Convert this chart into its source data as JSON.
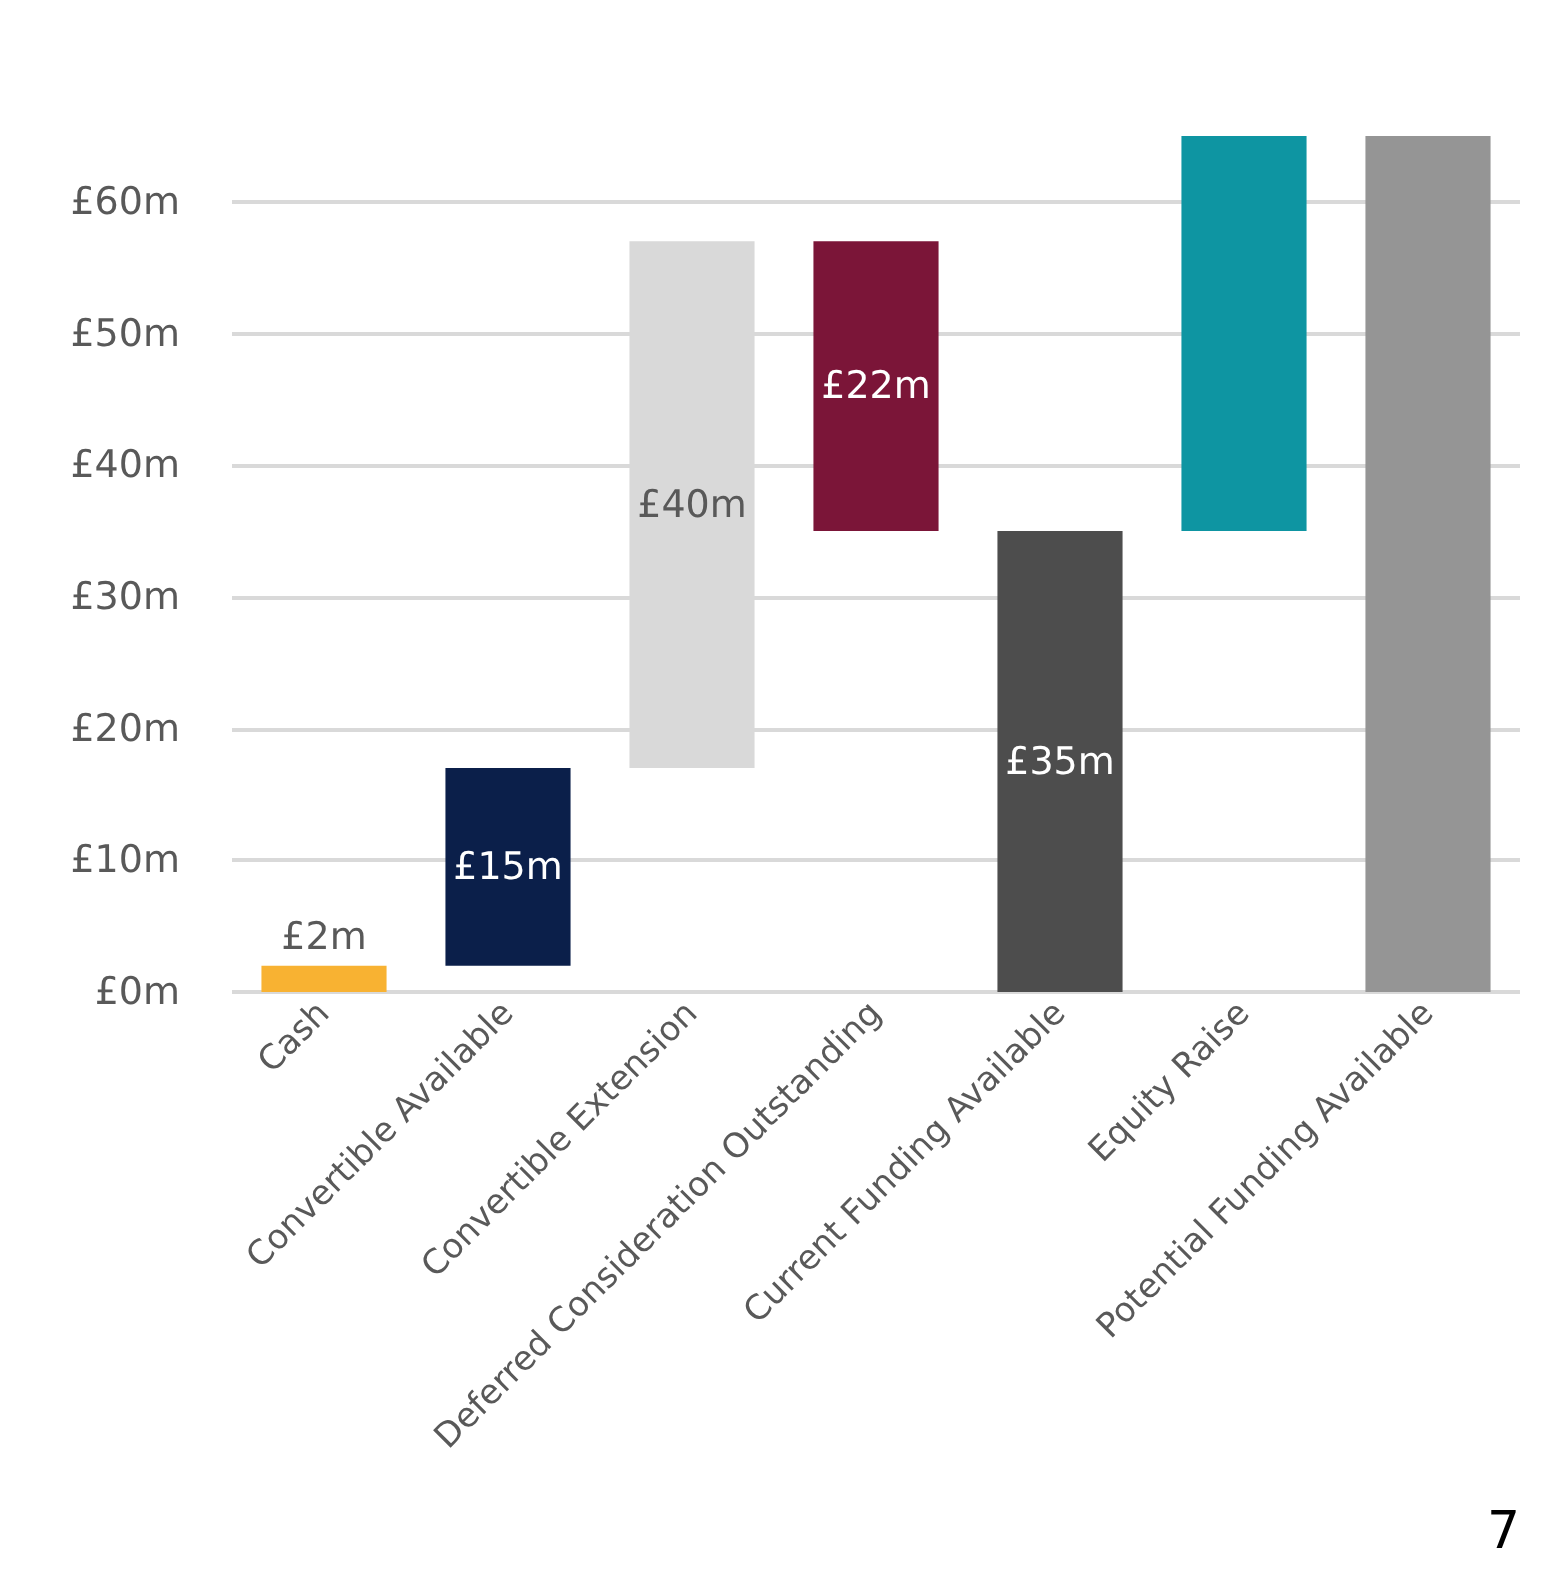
{
  "chart_data": {
    "type": "bar",
    "categories": [
      "Cash",
      "Convertible Available",
      "Convertible Extension",
      "Deferred Consideration Outstanding",
      "Current Funding Available",
      "Equity Raise",
      "Potential Funding Available"
    ],
    "values": [
      2,
      15,
      40,
      22,
      35,
      30,
      65
    ],
    "base": [
      0,
      2,
      17,
      35,
      0,
      35,
      0
    ],
    "colors": [
      "#f8b232",
      "#0b1f4a",
      "#d9d9d9",
      "#7b1538",
      "#4d4d4d",
      "#0e95a2",
      "#959595"
    ],
    "value_labels": [
      "£2m",
      "£15m",
      "£40m",
      "£22m",
      "£35m",
      null,
      null
    ],
    "ylim": [
      0,
      65
    ],
    "yticks": [
      {
        "value": 0,
        "label": "£0m"
      },
      {
        "value": 10,
        "label": "£10m"
      },
      {
        "value": 20,
        "label": "£20m"
      },
      {
        "value": 30,
        "label": "£30m"
      },
      {
        "value": 40,
        "label": "£40m"
      },
      {
        "value": 50,
        "label": "£50m"
      },
      {
        "value": 60,
        "label": "£60m"
      }
    ],
    "grid": "y",
    "annotations": [
      "7"
    ]
  }
}
